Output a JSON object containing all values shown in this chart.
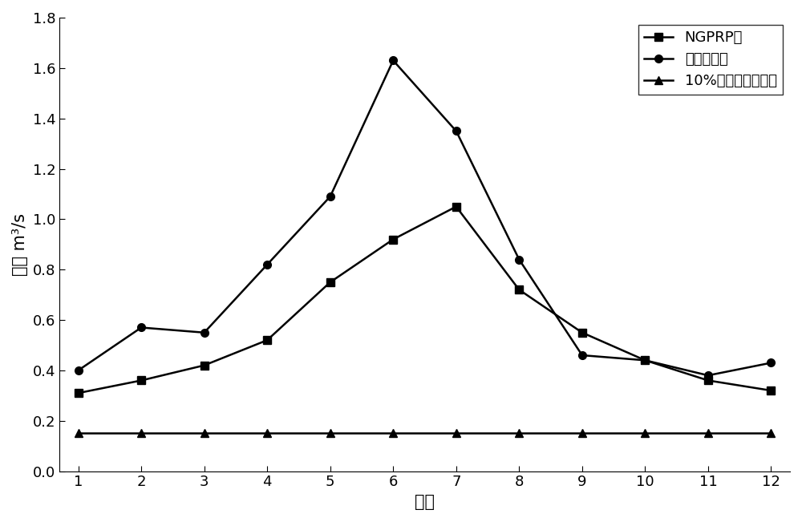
{
  "months": [
    1,
    2,
    3,
    4,
    5,
    6,
    7,
    8,
    9,
    10,
    11,
    12
  ],
  "ngprp": [
    0.31,
    0.36,
    0.42,
    0.52,
    0.75,
    0.92,
    1.05,
    0.72,
    0.55,
    0.44,
    0.36,
    0.32
  ],
  "nian_nei": [
    0.4,
    0.57,
    0.55,
    0.82,
    1.09,
    1.63,
    1.35,
    0.84,
    0.46,
    0.44,
    0.38,
    0.43
  ],
  "ten_percent": [
    0.15,
    0.15,
    0.15,
    0.15,
    0.15,
    0.15,
    0.15,
    0.15,
    0.15,
    0.15,
    0.15,
    0.15
  ],
  "line_color": "#000000",
  "marker_square": "s",
  "marker_circle": "o",
  "marker_triangle": "^",
  "label_ngprp": "NGPRP法",
  "label_nian_nei": "年内展布法",
  "label_ten_percent": "10%的多年平均流量",
  "xlabel": "月份",
  "ylabel": "流量 m³/s",
  "xlim": [
    1,
    12
  ],
  "ylim": [
    0.0,
    1.8
  ],
  "yticks": [
    0.0,
    0.2,
    0.4,
    0.6,
    0.8,
    1.0,
    1.2,
    1.4,
    1.6,
    1.8
  ],
  "xticks": [
    1,
    2,
    3,
    4,
    5,
    6,
    7,
    8,
    9,
    10,
    11,
    12
  ],
  "linewidth": 1.8,
  "markersize": 7,
  "legend_fontsize": 13,
  "axis_fontsize": 15,
  "tick_fontsize": 13,
  "background_color": "#ffffff"
}
